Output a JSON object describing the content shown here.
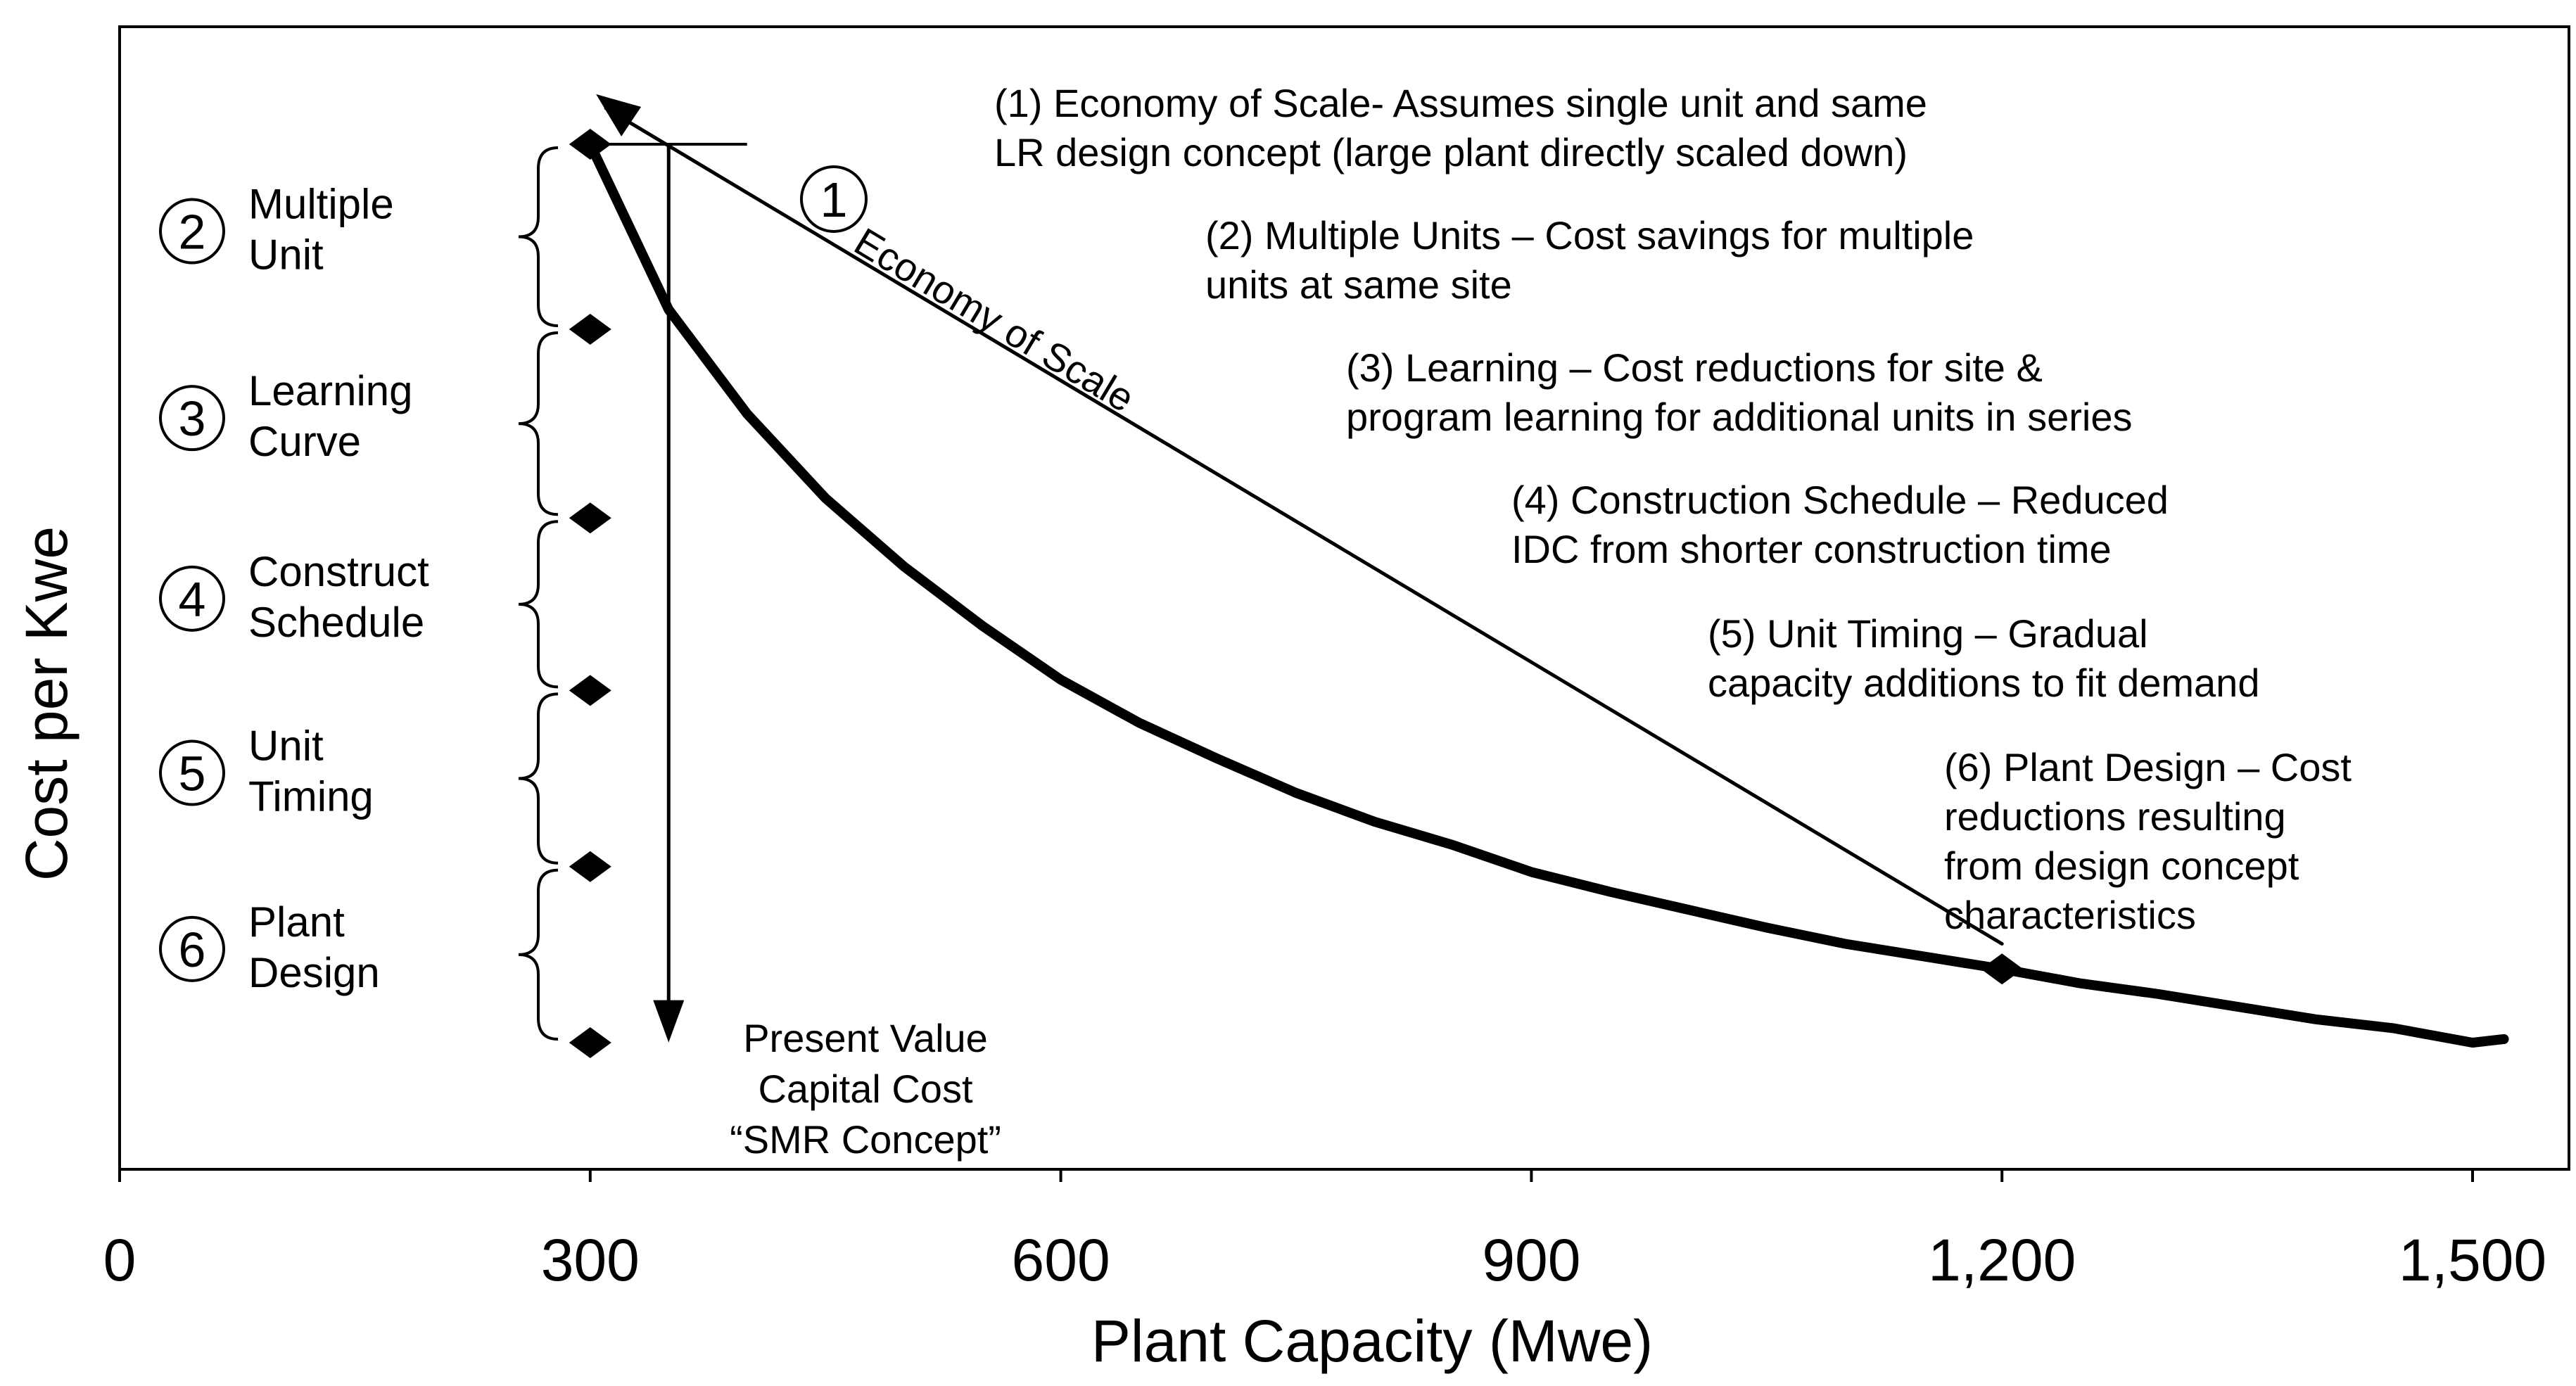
{
  "chart_data": {
    "type": "line",
    "title": "",
    "xlabel": "Plant Capacity (Mwe)",
    "ylabel": "Cost per Kwe",
    "xlim": [
      0,
      1500
    ],
    "x_ticks": [
      0,
      300,
      600,
      900,
      1200,
      1500
    ],
    "x_tick_labels": [
      "0",
      "300",
      "600",
      "900",
      "1,200",
      "1,500"
    ],
    "y_ticks_shown": false,
    "grid": false,
    "series": [
      {
        "name": "Present Value Capital Cost curve",
        "x": [
          300,
          350,
          400,
          450,
          500,
          550,
          600,
          650,
          700,
          750,
          800,
          850,
          900,
          950,
          1000,
          1050,
          1100,
          1150,
          1200,
          1250,
          1300,
          1350,
          1400,
          1450,
          1500,
          1520
        ],
        "y": [
          1000,
          908,
          850,
          803,
          765,
          732,
          702,
          678,
          658,
          639,
          623,
          610,
          595,
          584,
          574,
          564,
          555,
          548,
          541,
          533,
          527,
          520,
          513,
          508,
          500,
          502
        ]
      },
      {
        "name": "Economy of Scale",
        "x": [
          310,
          1200
        ],
        "y": [
          1020,
          555
        ]
      }
    ],
    "step_markers": {
      "x": 300,
      "y": [
        1000,
        897,
        792,
        696,
        598,
        500
      ]
    },
    "large_plant_marker": {
      "x": 1200,
      "y": 541
    },
    "pv_arrow": {
      "x": 350,
      "y_from": 1000,
      "y_to": 508
    },
    "eos_circle_number": "1",
    "eos_label": "Economy of Scale",
    "pv_label_lines": [
      "Present Value",
      "Capital Cost",
      "“SMR Concept”"
    ],
    "side_steps": [
      {
        "num": "2",
        "lines": [
          "Multiple",
          "Unit"
        ]
      },
      {
        "num": "3",
        "lines": [
          "Learning",
          "Curve"
        ]
      },
      {
        "num": "4",
        "lines": [
          "Construct",
          "Schedule"
        ]
      },
      {
        "num": "5",
        "lines": [
          "Unit",
          "Timing"
        ]
      },
      {
        "num": "6",
        "lines": [
          "Plant",
          "Design"
        ]
      }
    ],
    "notes": [
      {
        "lines": [
          "(1) Economy of Scale-  Assumes single unit and same",
          "LR design concept (large plant directly scaled down)"
        ]
      },
      {
        "lines": [
          "(2) Multiple Units – Cost savings for multiple",
          "units at same site"
        ]
      },
      {
        "lines": [
          "(3) Learning – Cost reductions for site &",
          "program learning for additional units in series"
        ]
      },
      {
        "lines": [
          "(4) Construction Schedule – Reduced",
          "IDC from shorter construction time"
        ]
      },
      {
        "lines": [
          "(5) Unit Timing – Gradual",
          "capacity additions to fit demand"
        ]
      },
      {
        "lines": [
          "(6) Plant Design – Cost",
          "reductions resulting",
          "from design concept",
          "characteristics"
        ]
      }
    ]
  }
}
